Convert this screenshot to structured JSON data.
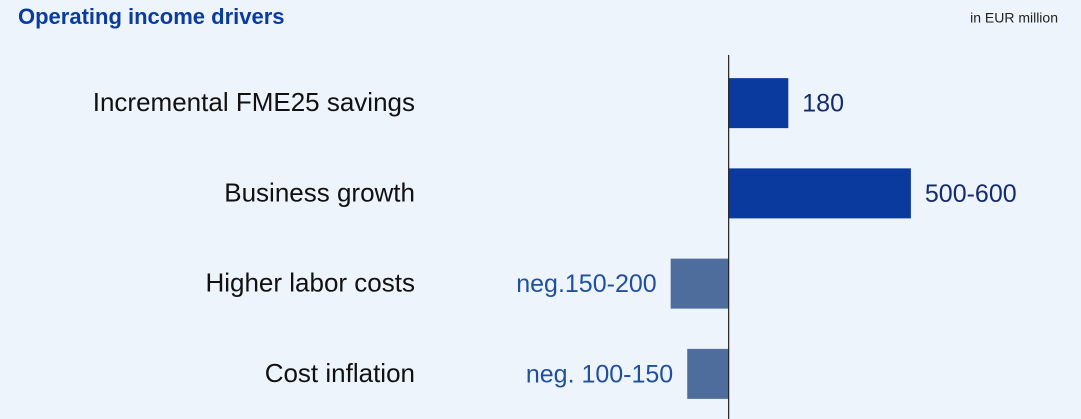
{
  "chart_data": {
    "type": "bar",
    "orientation": "horizontal",
    "title": "Operating income drivers",
    "unit_label": "in EUR million",
    "categories": [
      "Incremental FME25 savings",
      "Business growth",
      "Higher labor costs",
      "Cost inflation"
    ],
    "values": [
      180,
      550,
      -175,
      -125
    ],
    "value_labels": [
      "180",
      "500-600",
      "neg.150-200",
      "neg. 100-150"
    ],
    "colors": [
      "#0a3a9e",
      "#0a3a9e",
      "#4f6d9c",
      "#4f6d9c"
    ],
    "xlim": [
      -850,
      1000
    ],
    "grid": false
  }
}
